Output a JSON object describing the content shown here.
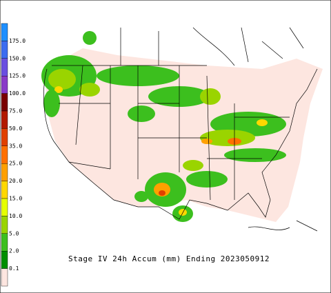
{
  "map": {
    "title": "Stage IV 24h Accum (mm) Ending 2023050912",
    "legend": {
      "labels": [
        "175.0",
        "150.0",
        "125.0",
        "100.0",
        "75.0",
        "50.0",
        "35.0",
        "25.0",
        "20.0",
        "15.0",
        "10.0",
        "5.0",
        "2.0",
        "0.1"
      ],
      "colors": [
        "#1e8fff",
        "#3c6cf0",
        "#6a4fe0",
        "#8a3ac8",
        "#7a0000",
        "#b21a00",
        "#e04000",
        "#ff7000",
        "#ffa000",
        "#ffd800",
        "#e6ff00",
        "#9ad400",
        "#3cbf1e",
        "#008f00",
        "#fde6e0"
      ]
    }
  }
}
